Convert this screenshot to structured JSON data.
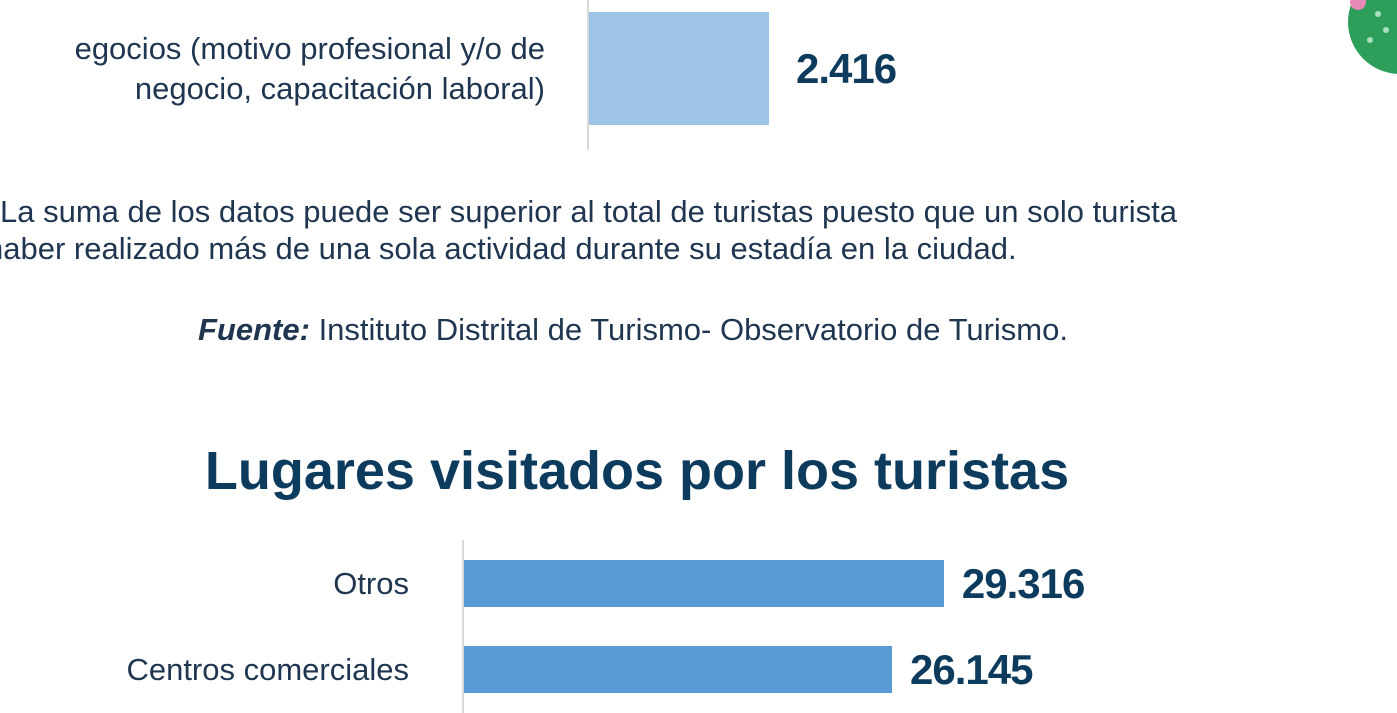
{
  "chart_data": [
    {
      "type": "bar",
      "orientation": "horizontal",
      "categories": [
        "egocios (motivo  profesional y/o de negocio, capacitación laboral)"
      ],
      "values": [
        2416
      ],
      "value_labels": [
        "2.416"
      ],
      "color": "#9dc3e6"
    },
    {
      "type": "bar",
      "orientation": "horizontal",
      "title": "Lugares visitados por los turistas",
      "categories": [
        "Otros",
        "Centros comerciales"
      ],
      "values": [
        29316,
        26145
      ],
      "value_labels": [
        "29.316",
        "26.145"
      ],
      "color": "#5b9bd5"
    }
  ],
  "note": {
    "lines": [
      "La suma de los datos puede ser superior al total de turistas puesto que un solo turista",
      "haber realizado más de una sola actividad durante su estadía en la ciudad."
    ]
  },
  "source": {
    "label": "Fuente:",
    "text": "Instituto Distrital de Turismo- Observatorio de Turismo."
  }
}
